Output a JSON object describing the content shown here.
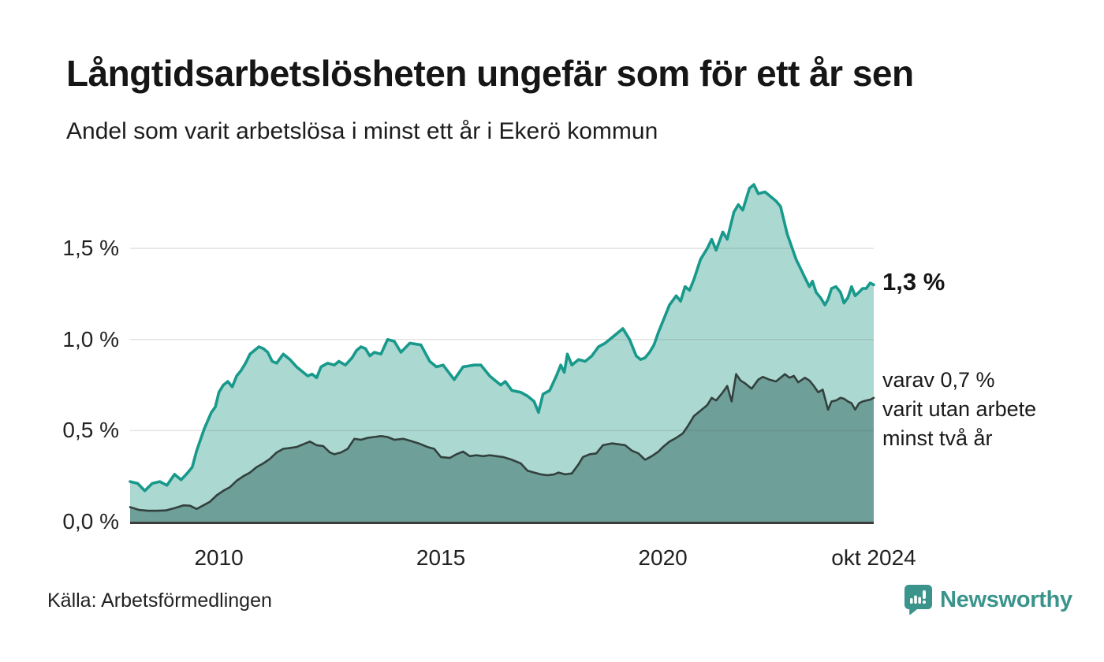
{
  "chart_data": {
    "type": "area",
    "title": "Långtidsarbetslösheten ungefär som för ett år sen",
    "subtitle": "Andel som varit arbetslösa i minst ett år i Ekerö kommun",
    "source": "Källa: Arbetsförmedlingen",
    "x_range": [
      2008.0,
      2024.75
    ],
    "ylim": [
      0,
      1.89
    ],
    "grid": "horizontal",
    "colors": {
      "upper_line": "#18998b",
      "upper_fill": "#abd8d0",
      "lower_line": "#32413d",
      "lower_fill": "#6f9f99",
      "gridline": "#e3e3e3",
      "baseline": "#3c3c3c"
    },
    "yticks": [
      {
        "value": 0.0,
        "label": "0,0 %"
      },
      {
        "value": 0.5,
        "label": "0,5 %"
      },
      {
        "value": 1.0,
        "label": "1,0 %"
      },
      {
        "value": 1.5,
        "label": "1,5 %"
      }
    ],
    "xticks": [
      {
        "value": 2010,
        "label": "2010"
      },
      {
        "value": 2015,
        "label": "2015"
      },
      {
        "value": 2020,
        "label": "2020"
      },
      {
        "value": 2024.75,
        "label": "okt 2024"
      }
    ],
    "series": [
      {
        "id": "arbetslosa-minst-ett-ar",
        "end_label": "1,3 %",
        "end_value": "1,3 %",
        "x": [
          2008.0,
          2008.17,
          2008.33,
          2008.5,
          2008.67,
          2008.83,
          2009.0,
          2009.15,
          2009.3,
          2009.4,
          2009.5,
          2009.67,
          2009.83,
          2009.92,
          2010.0,
          2010.1,
          2010.2,
          2010.3,
          2010.4,
          2010.5,
          2010.6,
          2010.7,
          2010.8,
          2010.9,
          2011.0,
          2011.1,
          2011.2,
          2011.3,
          2011.45,
          2011.6,
          2011.75,
          2011.85,
          2012.0,
          2012.1,
          2012.2,
          2012.3,
          2012.45,
          2012.6,
          2012.7,
          2012.85,
          2013.0,
          2013.1,
          2013.2,
          2013.3,
          2013.4,
          2013.5,
          2013.65,
          2013.8,
          2013.95,
          2014.1,
          2014.3,
          2014.55,
          2014.75,
          2014.9,
          2015.05,
          2015.3,
          2015.5,
          2015.75,
          2015.9,
          2016.1,
          2016.2,
          2016.35,
          2016.45,
          2016.6,
          2016.8,
          2016.95,
          2017.1,
          2017.2,
          2017.3,
          2017.45,
          2017.6,
          2017.7,
          2017.78,
          2017.85,
          2017.95,
          2018.1,
          2018.25,
          2018.4,
          2018.55,
          2018.7,
          2018.9,
          2019.1,
          2019.25,
          2019.4,
          2019.5,
          2019.6,
          2019.7,
          2019.8,
          2019.9,
          2020.0,
          2020.15,
          2020.3,
          2020.4,
          2020.5,
          2020.6,
          2020.7,
          2020.85,
          2021.0,
          2021.1,
          2021.2,
          2021.35,
          2021.45,
          2021.6,
          2021.7,
          2021.8,
          2021.95,
          2022.05,
          2022.15,
          2022.3,
          2022.4,
          2022.55,
          2022.65,
          2022.8,
          2023.0,
          2023.2,
          2023.3,
          2023.37,
          2023.45,
          2023.55,
          2023.65,
          2023.72,
          2023.8,
          2023.9,
          2024.0,
          2024.08,
          2024.17,
          2024.25,
          2024.33,
          2024.42,
          2024.5,
          2024.58,
          2024.67,
          2024.75
        ],
        "values": [
          0.22,
          0.21,
          0.17,
          0.21,
          0.22,
          0.2,
          0.26,
          0.23,
          0.27,
          0.3,
          0.39,
          0.51,
          0.6,
          0.63,
          0.71,
          0.75,
          0.77,
          0.74,
          0.8,
          0.83,
          0.87,
          0.92,
          0.94,
          0.96,
          0.95,
          0.93,
          0.88,
          0.87,
          0.92,
          0.89,
          0.85,
          0.83,
          0.8,
          0.81,
          0.79,
          0.85,
          0.87,
          0.86,
          0.88,
          0.86,
          0.9,
          0.94,
          0.96,
          0.95,
          0.91,
          0.93,
          0.92,
          1.0,
          0.99,
          0.93,
          0.98,
          0.97,
          0.88,
          0.85,
          0.86,
          0.78,
          0.85,
          0.86,
          0.86,
          0.8,
          0.78,
          0.75,
          0.77,
          0.72,
          0.71,
          0.69,
          0.66,
          0.6,
          0.7,
          0.72,
          0.8,
          0.86,
          0.82,
          0.92,
          0.86,
          0.89,
          0.88,
          0.91,
          0.96,
          0.98,
          1.02,
          1.06,
          1.0,
          0.91,
          0.89,
          0.9,
          0.93,
          0.97,
          1.04,
          1.1,
          1.19,
          1.24,
          1.21,
          1.29,
          1.27,
          1.33,
          1.44,
          1.5,
          1.55,
          1.49,
          1.59,
          1.55,
          1.7,
          1.74,
          1.71,
          1.83,
          1.85,
          1.8,
          1.81,
          1.79,
          1.76,
          1.73,
          1.58,
          1.44,
          1.34,
          1.29,
          1.32,
          1.26,
          1.23,
          1.19,
          1.22,
          1.28,
          1.29,
          1.26,
          1.2,
          1.23,
          1.29,
          1.24,
          1.26,
          1.28,
          1.28,
          1.31,
          1.3
        ]
      },
      {
        "id": "varav-utan-arbete-minst-tva-ar",
        "end_label": "varav 0,7 %\nvarit utan arbete\nminst två år",
        "end_value": "0,7 %",
        "x": [
          2008.0,
          2008.2,
          2008.4,
          2008.6,
          2008.8,
          2009.0,
          2009.2,
          2009.35,
          2009.5,
          2009.65,
          2009.8,
          2009.95,
          2010.1,
          2010.25,
          2010.4,
          2010.55,
          2010.7,
          2010.85,
          2011.0,
          2011.15,
          2011.3,
          2011.45,
          2011.6,
          2011.75,
          2011.9,
          2012.05,
          2012.2,
          2012.35,
          2012.5,
          2012.6,
          2012.75,
          2012.9,
          2013.05,
          2013.2,
          2013.35,
          2013.5,
          2013.65,
          2013.8,
          2013.95,
          2014.15,
          2014.3,
          2014.5,
          2014.7,
          2014.85,
          2015.0,
          2015.2,
          2015.35,
          2015.5,
          2015.65,
          2015.8,
          2015.95,
          2016.1,
          2016.25,
          2016.4,
          2016.6,
          2016.8,
          2016.95,
          2017.1,
          2017.25,
          2017.4,
          2017.55,
          2017.65,
          2017.8,
          2017.95,
          2018.1,
          2018.2,
          2018.35,
          2018.5,
          2018.65,
          2018.85,
          2019.0,
          2019.15,
          2019.3,
          2019.45,
          2019.6,
          2019.75,
          2019.9,
          2020.0,
          2020.15,
          2020.3,
          2020.45,
          2020.55,
          2020.7,
          2020.85,
          2021.0,
          2021.1,
          2021.2,
          2021.35,
          2021.45,
          2021.55,
          2021.65,
          2021.75,
          2021.85,
          2022.0,
          2022.15,
          2022.25,
          2022.4,
          2022.55,
          2022.65,
          2022.75,
          2022.85,
          2022.95,
          2023.05,
          2023.2,
          2023.3,
          2023.4,
          2023.5,
          2023.6,
          2023.72,
          2023.8,
          2023.9,
          2024.0,
          2024.08,
          2024.17,
          2024.25,
          2024.33,
          2024.42,
          2024.5,
          2024.58,
          2024.67,
          2024.75
        ],
        "values": [
          0.08,
          0.065,
          0.06,
          0.06,
          0.062,
          0.075,
          0.09,
          0.088,
          0.07,
          0.09,
          0.11,
          0.145,
          0.17,
          0.19,
          0.225,
          0.25,
          0.27,
          0.3,
          0.32,
          0.345,
          0.38,
          0.4,
          0.405,
          0.41,
          0.425,
          0.44,
          0.42,
          0.415,
          0.38,
          0.37,
          0.38,
          0.4,
          0.455,
          0.45,
          0.46,
          0.465,
          0.47,
          0.465,
          0.45,
          0.455,
          0.445,
          0.43,
          0.41,
          0.4,
          0.355,
          0.35,
          0.37,
          0.385,
          0.36,
          0.365,
          0.36,
          0.365,
          0.36,
          0.355,
          0.34,
          0.32,
          0.28,
          0.27,
          0.26,
          0.255,
          0.26,
          0.27,
          0.26,
          0.265,
          0.315,
          0.355,
          0.37,
          0.375,
          0.42,
          0.43,
          0.425,
          0.42,
          0.39,
          0.375,
          0.34,
          0.36,
          0.385,
          0.41,
          0.44,
          0.46,
          0.485,
          0.52,
          0.58,
          0.61,
          0.64,
          0.68,
          0.665,
          0.71,
          0.745,
          0.66,
          0.81,
          0.775,
          0.76,
          0.73,
          0.78,
          0.795,
          0.78,
          0.77,
          0.79,
          0.81,
          0.79,
          0.8,
          0.765,
          0.79,
          0.775,
          0.745,
          0.71,
          0.725,
          0.615,
          0.66,
          0.665,
          0.68,
          0.675,
          0.66,
          0.65,
          0.615,
          0.65,
          0.66,
          0.665,
          0.67,
          0.68
        ]
      }
    ]
  },
  "branding": {
    "wordmark": "Newsworthy",
    "logo_color": "#3a948b",
    "logo_icon": "bar-chart-speech-bubble-icon"
  }
}
